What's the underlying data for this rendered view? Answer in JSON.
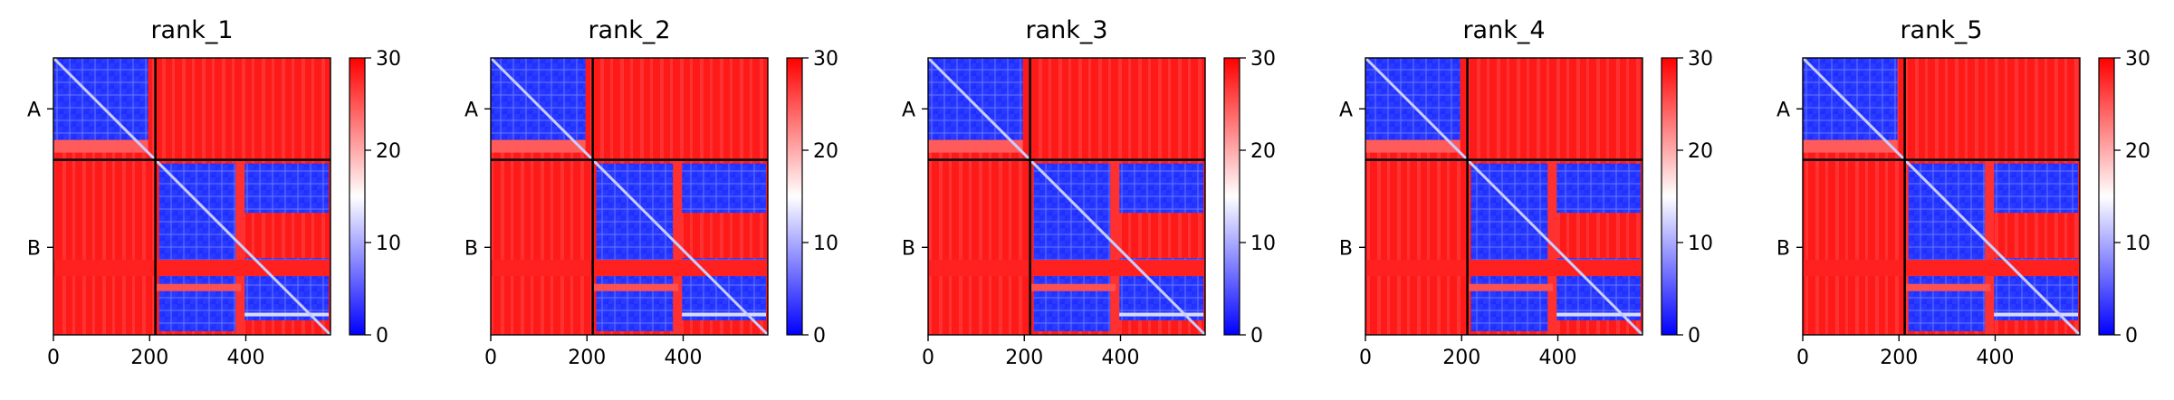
{
  "figure": {
    "background": "#ffffff"
  },
  "colormap": {
    "name": "bwr",
    "low": "#0000ff",
    "mid": "#ffffff",
    "high": "#ff0000"
  },
  "chart_data": [
    {
      "type": "heatmap",
      "title": "rank_1",
      "xlim": [
        0,
        576
      ],
      "ylim": [
        576,
        0
      ],
      "xticks": [
        0,
        200,
        400
      ],
      "xtick_labels": [
        "0",
        "200",
        "400"
      ],
      "chains": [
        {
          "label": "A",
          "start": 0,
          "end": 212
        },
        {
          "label": "B",
          "start": 212,
          "end": 576
        }
      ],
      "chain_boundary": 212,
      "colorbar": {
        "min": 0,
        "max": 30,
        "ticks": [
          0,
          10,
          20,
          30
        ],
        "tick_labels": [
          "0",
          "10",
          "20",
          "30"
        ]
      }
    },
    {
      "type": "heatmap",
      "title": "rank_2",
      "xlim": [
        0,
        576
      ],
      "ylim": [
        576,
        0
      ],
      "xticks": [
        0,
        200,
        400
      ],
      "xtick_labels": [
        "0",
        "200",
        "400"
      ],
      "chains": [
        {
          "label": "A",
          "start": 0,
          "end": 212
        },
        {
          "label": "B",
          "start": 212,
          "end": 576
        }
      ],
      "chain_boundary": 212,
      "colorbar": {
        "min": 0,
        "max": 30,
        "ticks": [
          0,
          10,
          20,
          30
        ],
        "tick_labels": [
          "0",
          "10",
          "20",
          "30"
        ]
      }
    },
    {
      "type": "heatmap",
      "title": "rank_3",
      "xlim": [
        0,
        576
      ],
      "ylim": [
        576,
        0
      ],
      "xticks": [
        0,
        200,
        400
      ],
      "xtick_labels": [
        "0",
        "200",
        "400"
      ],
      "chains": [
        {
          "label": "A",
          "start": 0,
          "end": 212
        },
        {
          "label": "B",
          "start": 212,
          "end": 576
        }
      ],
      "chain_boundary": 212,
      "colorbar": {
        "min": 0,
        "max": 30,
        "ticks": [
          0,
          10,
          20,
          30
        ],
        "tick_labels": [
          "0",
          "10",
          "20",
          "30"
        ]
      }
    },
    {
      "type": "heatmap",
      "title": "rank_4",
      "xlim": [
        0,
        576
      ],
      "ylim": [
        576,
        0
      ],
      "xticks": [
        0,
        200,
        400
      ],
      "xtick_labels": [
        "0",
        "200",
        "400"
      ],
      "chains": [
        {
          "label": "A",
          "start": 0,
          "end": 212
        },
        {
          "label": "B",
          "start": 212,
          "end": 576
        }
      ],
      "chain_boundary": 212,
      "colorbar": {
        "min": 0,
        "max": 30,
        "ticks": [
          0,
          10,
          20,
          30
        ],
        "tick_labels": [
          "0",
          "10",
          "20",
          "30"
        ]
      }
    },
    {
      "type": "heatmap",
      "title": "rank_5",
      "xlim": [
        0,
        576
      ],
      "ylim": [
        576,
        0
      ],
      "xticks": [
        0,
        200,
        400
      ],
      "xtick_labels": [
        "0",
        "200",
        "400"
      ],
      "chains": [
        {
          "label": "A",
          "start": 0,
          "end": 212
        },
        {
          "label": "B",
          "start": 212,
          "end": 576
        }
      ],
      "chain_boundary": 212,
      "colorbar": {
        "min": 0,
        "max": 30,
        "ticks": [
          0,
          10,
          20,
          30
        ],
        "tick_labels": [
          "0",
          "10",
          "20",
          "30"
        ]
      }
    }
  ]
}
